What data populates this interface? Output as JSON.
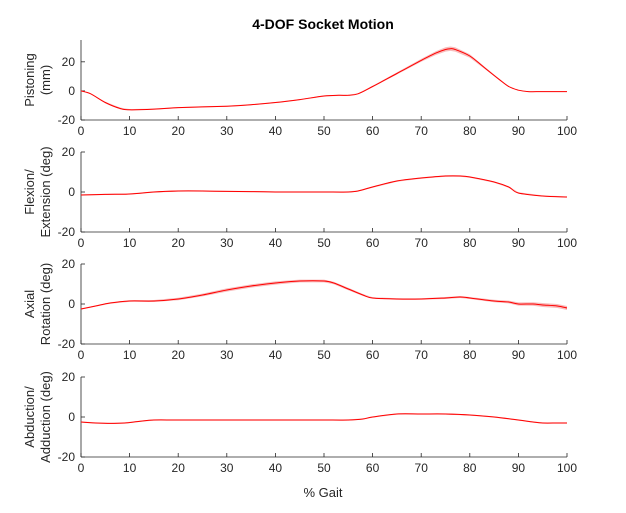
{
  "figure": {
    "title": "4-DOF Socket Motion",
    "xlabel": "% Gait"
  },
  "chart_data": [
    {
      "type": "line",
      "ylabel_lines": [
        "Pistoning",
        "(mm)"
      ],
      "xlim": [
        0,
        100
      ],
      "ylim": [
        -20,
        35
      ],
      "yticks": [
        -20,
        0,
        20
      ],
      "xticks": [
        0,
        10,
        20,
        30,
        40,
        50,
        60,
        70,
        80,
        90,
        100
      ],
      "series_color": "#ff0000",
      "band_color": "#f4a0a0",
      "x": [
        0,
        2,
        5,
        8,
        10,
        15,
        20,
        25,
        30,
        35,
        40,
        45,
        50,
        53,
        55,
        57,
        60,
        65,
        70,
        73,
        75,
        76,
        77,
        80,
        83,
        86,
        88,
        90,
        92,
        95,
        100
      ],
      "y": [
        0,
        -2,
        -8,
        -12,
        -13,
        -12.5,
        -11.5,
        -11,
        -10.5,
        -9.5,
        -8,
        -6,
        -3.5,
        -3,
        -3,
        -2,
        3,
        12,
        21,
        26,
        28.5,
        29,
        28.5,
        24,
        16,
        8,
        3,
        0.5,
        -0.5,
        -0.5,
        -0.5
      ],
      "band": [
        0,
        0,
        0.6,
        0.6,
        0.5,
        0.4,
        0.4,
        0.4,
        0.4,
        0.4,
        0.4,
        0.4,
        0.4,
        0.4,
        0.4,
        0.4,
        0.5,
        0.7,
        1.0,
        1.3,
        1.5,
        1.5,
        1.5,
        1.2,
        0.8,
        0.5,
        0.4,
        0.3,
        0.2,
        0.2,
        0.2
      ]
    },
    {
      "type": "line",
      "ylabel_lines": [
        "Flexion/",
        "Extension (deg)"
      ],
      "xlim": [
        0,
        100
      ],
      "ylim": [
        -20,
        20
      ],
      "yticks": [
        -20,
        0,
        20
      ],
      "xticks": [
        0,
        10,
        20,
        30,
        40,
        50,
        60,
        70,
        80,
        90,
        100
      ],
      "series_color": "#ff0000",
      "band_color": "#f4a0a0",
      "x": [
        0,
        5,
        10,
        15,
        20,
        25,
        30,
        35,
        40,
        45,
        50,
        55,
        57,
        60,
        65,
        70,
        75,
        78,
        80,
        85,
        88,
        90,
        95,
        100
      ],
      "y": [
        -1.5,
        -1.2,
        -1,
        0,
        0.5,
        0.5,
        0.3,
        0.2,
        0,
        0,
        0,
        0,
        0.5,
        2.5,
        5.5,
        7,
        8,
        8,
        7.5,
        5,
        2.5,
        -0.5,
        -2,
        -2.5
      ],
      "band": [
        0.3,
        0.3,
        0.3,
        0.3,
        0.3,
        0.3,
        0.3,
        0.3,
        0.3,
        0.3,
        0.3,
        0.3,
        0.3,
        0.4,
        0.4,
        0.4,
        0.4,
        0.4,
        0.4,
        0.4,
        0.4,
        0.4,
        0.3,
        0.3
      ]
    },
    {
      "type": "line",
      "ylabel_lines": [
        "Axial",
        "Rotation (deg)"
      ],
      "xlim": [
        0,
        100
      ],
      "ylim": [
        -20,
        20
      ],
      "yticks": [
        -20,
        0,
        20
      ],
      "xticks": [
        0,
        10,
        20,
        30,
        40,
        50,
        60,
        70,
        80,
        90,
        100
      ],
      "series_color": "#ff0000",
      "band_color": "#f4a0a0",
      "x": [
        0,
        3,
        6,
        10,
        15,
        20,
        25,
        30,
        35,
        40,
        45,
        50,
        52,
        55,
        58,
        60,
        65,
        70,
        75,
        78,
        80,
        85,
        88,
        90,
        93,
        95,
        98,
        100
      ],
      "y": [
        -2.5,
        -1,
        0.5,
        1.5,
        1.5,
        2.5,
        4.5,
        7,
        9,
        10.5,
        11.5,
        11.5,
        10.5,
        7.5,
        4.5,
        3,
        2.5,
        2.5,
        3,
        3.5,
        3,
        1.5,
        1,
        0,
        0,
        -0.5,
        -1,
        -2
      ],
      "band": [
        0.3,
        0.3,
        0.4,
        0.4,
        0.5,
        0.6,
        0.7,
        0.8,
        0.8,
        0.8,
        0.7,
        0.7,
        0.6,
        0.6,
        0.5,
        0.4,
        0.4,
        0.4,
        0.5,
        0.5,
        0.5,
        0.6,
        0.7,
        0.8,
        0.9,
        1.0,
        1.0,
        1.0
      ]
    },
    {
      "type": "line",
      "ylabel_lines": [
        "Abduction/",
        "Adduction (deg)"
      ],
      "xlim": [
        0,
        100
      ],
      "ylim": [
        -20,
        20
      ],
      "yticks": [
        -20,
        0,
        20
      ],
      "xticks": [
        0,
        10,
        20,
        30,
        40,
        50,
        60,
        70,
        80,
        90,
        100
      ],
      "series_color": "#ff0000",
      "band_color": "#f4a0a0",
      "x": [
        0,
        3,
        6,
        9,
        12,
        15,
        20,
        30,
        40,
        45,
        50,
        55,
        58,
        60,
        65,
        70,
        75,
        80,
        85,
        90,
        93,
        95,
        98,
        100
      ],
      "y": [
        -2.5,
        -3,
        -3.2,
        -3,
        -2.2,
        -1.5,
        -1.5,
        -1.5,
        -1.5,
        -1.5,
        -1.5,
        -1.5,
        -1,
        0,
        1.5,
        1.5,
        1.5,
        1,
        0,
        -1.5,
        -2.5,
        -3,
        -3,
        -3
      ],
      "band": [
        0.3,
        0.3,
        0.3,
        0.3,
        0.3,
        0.3,
        0.3,
        0.3,
        0.3,
        0.3,
        0.3,
        0.3,
        0.3,
        0.3,
        0.3,
        0.3,
        0.3,
        0.3,
        0.3,
        0.3,
        0.3,
        0.3,
        0.3,
        0.3
      ]
    }
  ]
}
